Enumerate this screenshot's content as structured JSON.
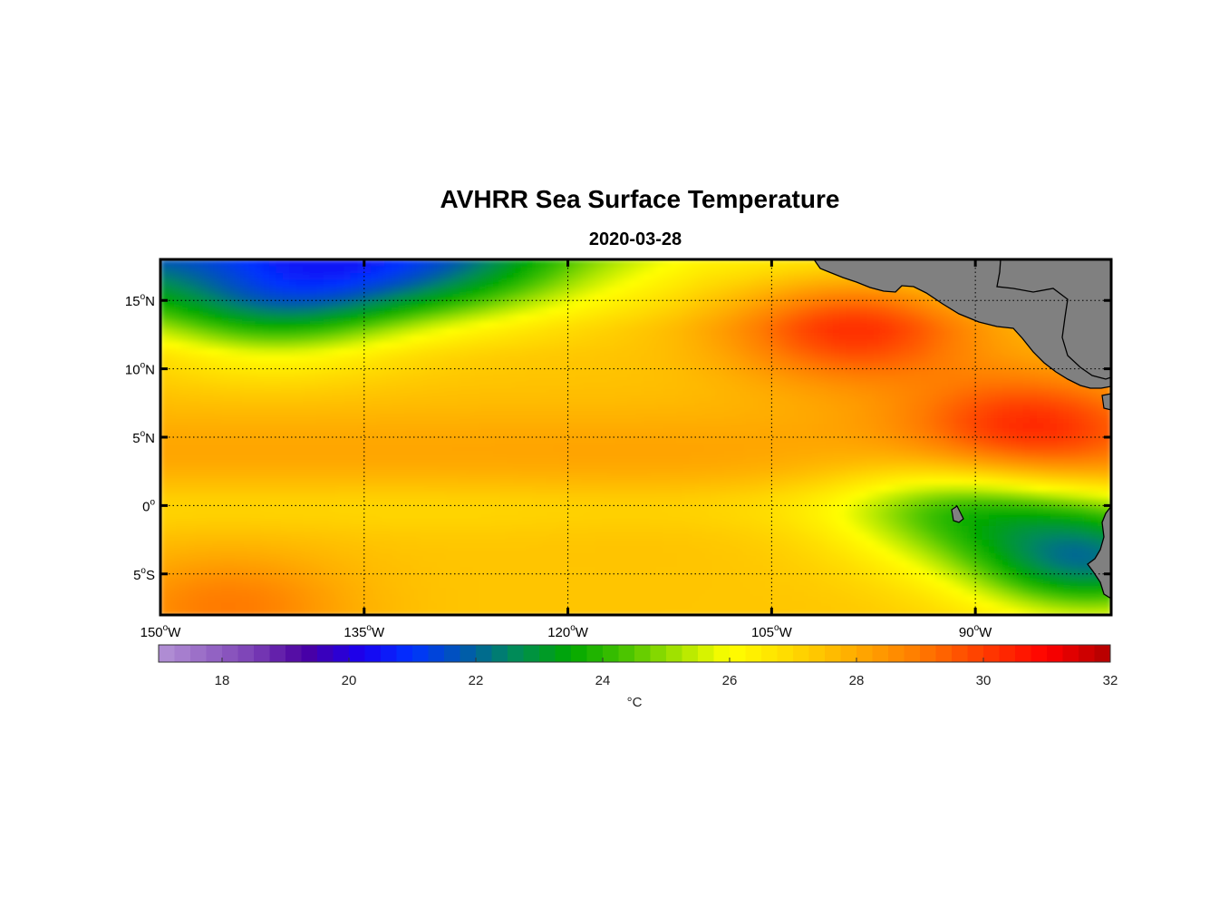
{
  "title": "AVHRR Sea Surface Temperature",
  "subtitle": "2020-03-28",
  "chart_data": {
    "type": "heatmap",
    "variable": "Sea surface temperature",
    "units_label": "°C",
    "lon_range": [
      -150,
      -80
    ],
    "lat_range": [
      -8,
      18
    ],
    "lon_ticks": [
      {
        "value": -150,
        "num": "150",
        "hemi": "W"
      },
      {
        "value": -135,
        "num": "135",
        "hemi": "W"
      },
      {
        "value": -120,
        "num": "120",
        "hemi": "W"
      },
      {
        "value": -105,
        "num": "105",
        "hemi": "W"
      },
      {
        "value": -90,
        "num": "90",
        "hemi": "W"
      }
    ],
    "lat_ticks": [
      {
        "value": 15,
        "num": "15",
        "hemi": "N"
      },
      {
        "value": 10,
        "num": "10",
        "hemi": "N"
      },
      {
        "value": 5,
        "num": "5",
        "hemi": "N"
      },
      {
        "value": 0,
        "num": "0",
        "hemi": ""
      },
      {
        "value": -5,
        "num": "5",
        "hemi": "S"
      }
    ],
    "colorbar": {
      "range": [
        17,
        32
      ],
      "ticks": [
        "18",
        "20",
        "22",
        "24",
        "26",
        "28",
        "30",
        "32"
      ],
      "stops": [
        {
          "value": 17,
          "color": "#b493d6"
        },
        {
          "value": 18.5,
          "color": "#7a3fb5"
        },
        {
          "value": 19.3,
          "color": "#4b00a0"
        },
        {
          "value": 20.2,
          "color": "#1a00f0"
        },
        {
          "value": 21,
          "color": "#0033ff"
        },
        {
          "value": 21.8,
          "color": "#0058b0"
        },
        {
          "value": 22.6,
          "color": "#008a5a"
        },
        {
          "value": 23.5,
          "color": "#00a800"
        },
        {
          "value": 24.3,
          "color": "#44c200"
        },
        {
          "value": 25.3,
          "color": "#b4e800"
        },
        {
          "value": 26,
          "color": "#ffff00"
        },
        {
          "value": 27,
          "color": "#ffd800"
        },
        {
          "value": 28,
          "color": "#ffaa00"
        },
        {
          "value": 29,
          "color": "#ff7a00"
        },
        {
          "value": 30,
          "color": "#ff3c00"
        },
        {
          "value": 31,
          "color": "#ff0000"
        },
        {
          "value": 32,
          "color": "#b00000"
        }
      ]
    },
    "sst_features": [
      {
        "region": "north-west cool tongue",
        "lon": -137,
        "lat": 17,
        "value": 22.3
      },
      {
        "region": "north-west cool patch",
        "lon": -142,
        "lat": 14,
        "value": 23.5
      },
      {
        "region": "north-central cool patch",
        "lon": -128,
        "lat": 17.5,
        "value": 22.8
      },
      {
        "region": "north-east warm pool",
        "lon": -99,
        "lat": 13,
        "value": 30.2
      },
      {
        "region": "Panama Bight warm pool",
        "lon": -86,
        "lat": 6,
        "value": 30.4
      },
      {
        "region": "equatorial band",
        "lon": -115,
        "lat": 0,
        "value": 27.2
      },
      {
        "region": "Galapagos cool patch",
        "lon": -91.5,
        "lat": -0.5,
        "value": 24.5
      },
      {
        "region": "Peru coastal upwelling",
        "lon": -81.5,
        "lat": -4,
        "value": 22.5
      },
      {
        "region": "south-west warm corner",
        "lon": -145,
        "lat": -7.5,
        "value": 29.0
      }
    ],
    "land": [
      "Mexico",
      "Central America",
      "South America",
      "Galapagos Islands"
    ],
    "land_color": "#808080"
  }
}
